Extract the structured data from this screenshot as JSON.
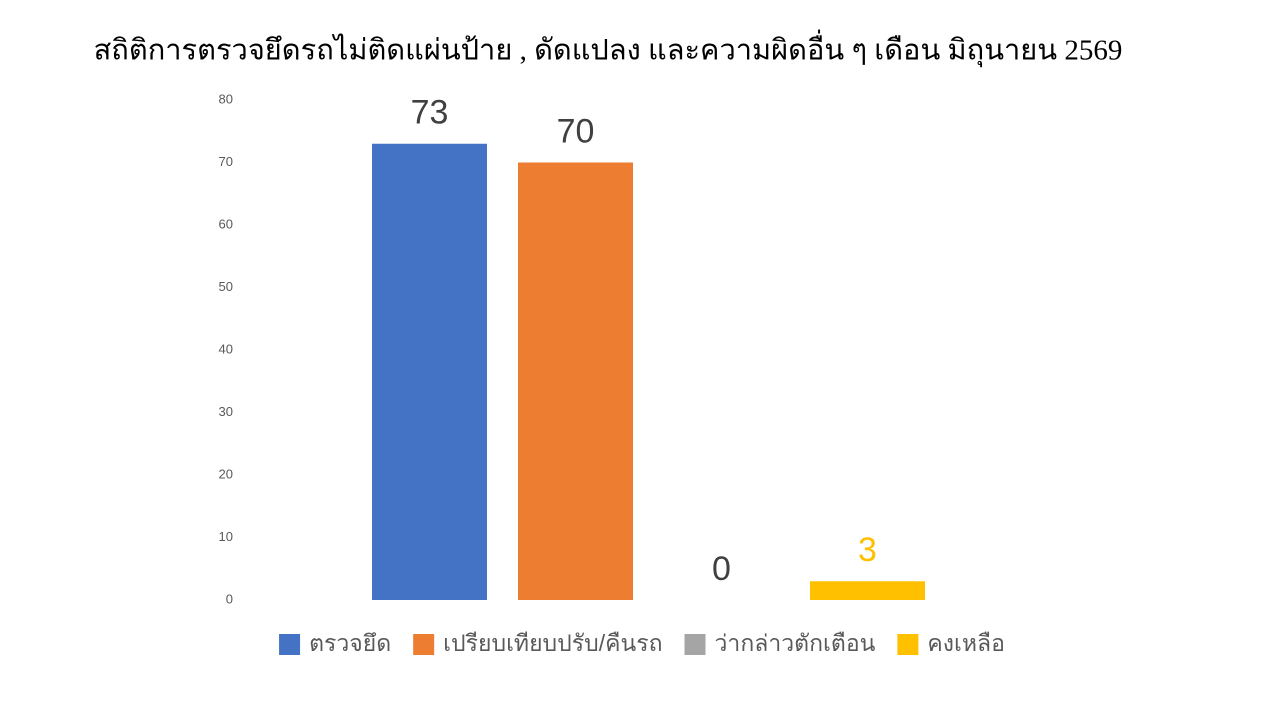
{
  "chart_data": {
    "type": "bar",
    "title": "สถิติการตรวจยึดรถไม่ติดแผ่นป้าย , ดัดแปลง และความผิดอื่น ๆ เดือน มิถุนายน  2569",
    "categories": [
      null
    ],
    "series": [
      {
        "name": "ตรวจยึด",
        "color": "#4472c4",
        "label_color": "#404040",
        "values": [
          73
        ]
      },
      {
        "name": "เปรียบเทียบปรับ/คืนรถ",
        "color": "#ed7d31",
        "label_color": "#404040",
        "values": [
          70
        ]
      },
      {
        "name": "ว่ากล่าวตักเตือน",
        "color": "#a5a5a5",
        "label_color": "#404040",
        "values": [
          0
        ]
      },
      {
        "name": "คงเหลือ",
        "color": "#ffc000",
        "label_color": "#ffc000",
        "values": [
          3
        ]
      }
    ],
    "ylim": [
      0,
      80
    ],
    "yticks": [
      0,
      10,
      20,
      30,
      40,
      50,
      60,
      70,
      80
    ],
    "grid": false,
    "legend": "bottom"
  }
}
